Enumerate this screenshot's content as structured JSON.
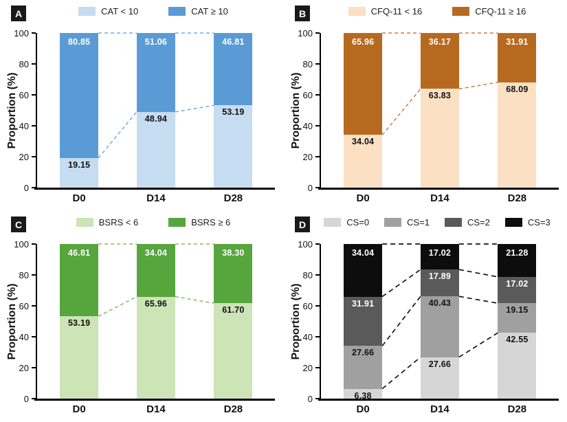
{
  "figure": {
    "ylabel": "Proportion (%)",
    "categories": [
      "D0",
      "D14",
      "D28"
    ]
  },
  "chart_data": [
    {
      "type": "bar",
      "stacked": true,
      "panel_label": "A",
      "categories": [
        "D0",
        "D14",
        "D28"
      ],
      "ylabel": "Proportion (%)",
      "ylim": [
        0,
        100
      ],
      "yticks": [
        "0",
        "20",
        "40",
        "60",
        "80",
        "100"
      ],
      "grid": false,
      "legend_position": "top",
      "connector_style": "dashed",
      "connector_color": "#74A9DB",
      "series": [
        {
          "name": "CAT < 10",
          "color": "#C6DCF0",
          "label_color": "#111111",
          "values": [
            "19.15",
            "48.94",
            "53.19"
          ]
        },
        {
          "name": "CAT ≥ 10",
          "color": "#5B9BD5",
          "label_color": "#FFFFFF",
          "values": [
            "80.85",
            "51.06",
            "46.81"
          ]
        }
      ]
    },
    {
      "type": "bar",
      "stacked": true,
      "panel_label": "B",
      "categories": [
        "D0",
        "D14",
        "D28"
      ],
      "ylabel": "Proportion (%)",
      "ylim": [
        0,
        100
      ],
      "yticks": [
        "0",
        "20",
        "40",
        "60",
        "80",
        "100"
      ],
      "grid": false,
      "legend_position": "top",
      "connector_style": "dashed",
      "connector_color": "#C28044",
      "series": [
        {
          "name": "CFQ-11 < 16",
          "color": "#FBE0C4",
          "label_color": "#111111",
          "values": [
            "34.04",
            "63.83",
            "68.09"
          ]
        },
        {
          "name": "CFQ-11 ≥ 16",
          "color": "#B66A20",
          "label_color": "#FFFFFF",
          "values": [
            "65.96",
            "36.17",
            "31.91"
          ]
        }
      ]
    },
    {
      "type": "bar",
      "stacked": true,
      "panel_label": "C",
      "categories": [
        "D0",
        "D14",
        "D28"
      ],
      "ylabel": "Proportion (%)",
      "ylim": [
        0,
        100
      ],
      "yticks": [
        "0",
        "20",
        "40",
        "60",
        "80",
        "100"
      ],
      "grid": false,
      "legend_position": "top",
      "connector_style": "dashed",
      "connector_color": "#82BB60",
      "series": [
        {
          "name": "BSRS < 6",
          "color": "#CDE4B6",
          "label_color": "#111111",
          "values": [
            "53.19",
            "65.96",
            "61.70"
          ]
        },
        {
          "name": "BSRS ≥ 6",
          "color": "#57A53D",
          "label_color": "#FFFFFF",
          "values": [
            "46.81",
            "34.04",
            "38.30"
          ]
        }
      ]
    },
    {
      "type": "bar",
      "stacked": true,
      "panel_label": "D",
      "categories": [
        "D0",
        "D14",
        "D28"
      ],
      "ylabel": "Proportion (%)",
      "ylim": [
        0,
        100
      ],
      "yticks": [
        "0",
        "20",
        "40",
        "60",
        "80",
        "100"
      ],
      "grid": false,
      "legend_position": "top",
      "connector_style": "dashed",
      "connector_color": "#141414",
      "series": [
        {
          "name": "CS=0",
          "color": "#D6D6D6",
          "label_color": "#111111",
          "values": [
            "6.38",
            "27.66",
            "42.55"
          ]
        },
        {
          "name": "CS=1",
          "color": "#A0A0A0",
          "label_color": "#111111",
          "values": [
            "27.66",
            "40.43",
            "19.15"
          ]
        },
        {
          "name": "CS=2",
          "color": "#5A5A5A",
          "label_color": "#FFFFFF",
          "values": [
            "31.91",
            "17.89",
            "17.02"
          ]
        },
        {
          "name": "CS=3",
          "color": "#0D0D0D",
          "label_color": "#FFFFFF",
          "values": [
            "34.04",
            "17.02",
            "21.28"
          ]
        }
      ]
    }
  ]
}
